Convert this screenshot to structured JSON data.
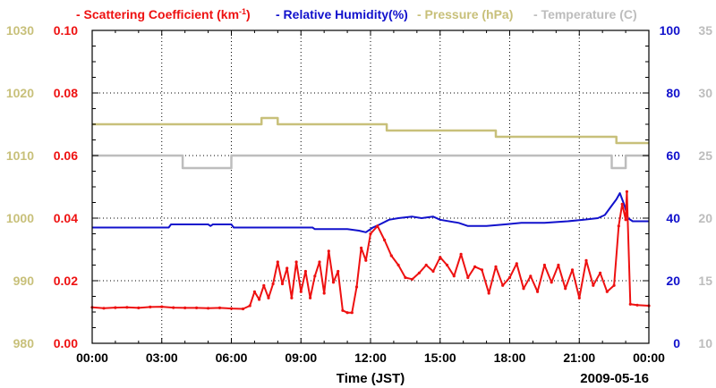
{
  "chart_data": {
    "type": "line",
    "title": "",
    "legend": {
      "position": "top",
      "entries": [
        {
          "label": "- Scattering Coefficient (km",
          "sup": "-1",
          "close": ")",
          "color": "#ee1111"
        },
        {
          "label": "- Relative Humidity(%)",
          "color": "#1111cc"
        },
        {
          "label": "- Pressure (hPa)",
          "color": "#c8c07a"
        },
        {
          "label": "- Temperature (C)",
          "color": "#bdbdbd"
        }
      ]
    },
    "xlabel": "Time (JST)",
    "date_label": "2009-05-16",
    "x_range_hours": [
      0,
      24
    ],
    "x_ticks": [
      {
        "hour": 0,
        "label": "00:00"
      },
      {
        "hour": 3,
        "label": "03:00"
      },
      {
        "hour": 6,
        "label": "06:00"
      },
      {
        "hour": 9,
        "label": "09:00"
      },
      {
        "hour": 12,
        "label": "12:00"
      },
      {
        "hour": 15,
        "label": "15:00"
      },
      {
        "hour": 18,
        "label": "18:00"
      },
      {
        "hour": 21,
        "label": "21:00"
      },
      {
        "hour": 24,
        "label": "00:00"
      }
    ],
    "axes": {
      "pressure": {
        "range": [
          980,
          1030
        ],
        "ticks": [
          "980",
          "990",
          "1000",
          "1010",
          "1020",
          "1030"
        ],
        "color": "#c8c07a"
      },
      "scattering": {
        "range": [
          0,
          0.1
        ],
        "ticks": [
          "0.00",
          "0.02",
          "0.04",
          "0.06",
          "0.08",
          "0.10"
        ],
        "color": "#ee1111"
      },
      "humidity": {
        "range": [
          0,
          100
        ],
        "ticks": [
          "0",
          "20",
          "40",
          "60",
          "80",
          "100"
        ],
        "color": "#1111cc"
      },
      "temperature": {
        "range": [
          10,
          35
        ],
        "ticks": [
          "10",
          "15",
          "20",
          "25",
          "30",
          "35"
        ],
        "color": "#bdbdbd"
      }
    },
    "grid": true,
    "series": [
      {
        "name": "Pressure (hPa)",
        "axis": "pressure",
        "color": "#c8c07a",
        "step": true,
        "points": [
          [
            0,
            1015
          ],
          [
            7.3,
            1015
          ],
          [
            7.3,
            1016
          ],
          [
            8.0,
            1016
          ],
          [
            8.0,
            1015
          ],
          [
            12.7,
            1015
          ],
          [
            12.7,
            1014
          ],
          [
            17.4,
            1014
          ],
          [
            17.4,
            1013
          ],
          [
            22.6,
            1013
          ],
          [
            22.6,
            1012
          ],
          [
            24,
            1012
          ]
        ]
      },
      {
        "name": "Temperature (C)",
        "axis": "temperature",
        "color": "#bdbdbd",
        "step": true,
        "points": [
          [
            0,
            25
          ],
          [
            3.9,
            25
          ],
          [
            3.9,
            24
          ],
          [
            6.0,
            24
          ],
          [
            6.0,
            25
          ],
          [
            22.4,
            25
          ],
          [
            22.4,
            24
          ],
          [
            23.0,
            24
          ],
          [
            23.0,
            25
          ],
          [
            24,
            25
          ]
        ]
      },
      {
        "name": "Relative Humidity(%)",
        "axis": "humidity",
        "color": "#1111cc",
        "step": false,
        "points": [
          [
            0,
            37
          ],
          [
            3.3,
            37
          ],
          [
            3.4,
            38
          ],
          [
            5.0,
            38
          ],
          [
            5.1,
            37.5
          ],
          [
            5.2,
            38
          ],
          [
            6.0,
            38
          ],
          [
            6.1,
            37
          ],
          [
            9.5,
            37
          ],
          [
            9.6,
            36.5
          ],
          [
            11.0,
            36.5
          ],
          [
            11.5,
            36
          ],
          [
            11.8,
            35.5
          ],
          [
            12.1,
            37
          ],
          [
            12.4,
            38
          ],
          [
            12.8,
            39.5
          ],
          [
            13.2,
            40
          ],
          [
            13.8,
            40.5
          ],
          [
            14.2,
            40
          ],
          [
            14.7,
            40.5
          ],
          [
            15.0,
            39.5
          ],
          [
            15.8,
            38.5
          ],
          [
            16.2,
            37.5
          ],
          [
            17.0,
            37.5
          ],
          [
            17.8,
            38
          ],
          [
            18.5,
            38.5
          ],
          [
            19.5,
            38.5
          ],
          [
            20.5,
            39
          ],
          [
            21.2,
            39.5
          ],
          [
            21.8,
            40
          ],
          [
            22.1,
            41
          ],
          [
            22.4,
            44
          ],
          [
            22.6,
            46
          ],
          [
            22.75,
            48
          ],
          [
            22.85,
            46
          ],
          [
            22.95,
            44
          ],
          [
            23.1,
            40
          ],
          [
            23.3,
            39
          ],
          [
            24,
            39
          ]
        ]
      },
      {
        "name": "Scattering Coefficient (km-1)",
        "axis": "scattering",
        "color": "#ee1111",
        "step": false,
        "points": [
          [
            0,
            0.0115
          ],
          [
            0.5,
            0.0112
          ],
          [
            1.0,
            0.0114
          ],
          [
            1.5,
            0.0115
          ],
          [
            2.0,
            0.0113
          ],
          [
            2.5,
            0.0116
          ],
          [
            3.0,
            0.0117
          ],
          [
            3.5,
            0.0114
          ],
          [
            4.0,
            0.0113
          ],
          [
            4.5,
            0.0113
          ],
          [
            5.0,
            0.0112
          ],
          [
            5.5,
            0.0113
          ],
          [
            6.0,
            0.0111
          ],
          [
            6.5,
            0.011
          ],
          [
            6.8,
            0.012
          ],
          [
            7.0,
            0.0165
          ],
          [
            7.2,
            0.014
          ],
          [
            7.4,
            0.0185
          ],
          [
            7.6,
            0.0145
          ],
          [
            7.8,
            0.019
          ],
          [
            8.0,
            0.026
          ],
          [
            8.2,
            0.019
          ],
          [
            8.4,
            0.024
          ],
          [
            8.6,
            0.0145
          ],
          [
            8.8,
            0.026
          ],
          [
            9.0,
            0.0165
          ],
          [
            9.2,
            0.023
          ],
          [
            9.4,
            0.0145
          ],
          [
            9.6,
            0.0215
          ],
          [
            9.8,
            0.026
          ],
          [
            10.0,
            0.016
          ],
          [
            10.2,
            0.0295
          ],
          [
            10.4,
            0.0195
          ],
          [
            10.6,
            0.023
          ],
          [
            10.8,
            0.0105
          ],
          [
            11.0,
            0.0098
          ],
          [
            11.2,
            0.0098
          ],
          [
            11.4,
            0.018
          ],
          [
            11.6,
            0.0305
          ],
          [
            11.8,
            0.0265
          ],
          [
            12.0,
            0.035
          ],
          [
            12.3,
            0.0375
          ],
          [
            12.6,
            0.033
          ],
          [
            12.9,
            0.028
          ],
          [
            13.2,
            0.025
          ],
          [
            13.5,
            0.021
          ],
          [
            13.8,
            0.0205
          ],
          [
            14.1,
            0.0225
          ],
          [
            14.4,
            0.025
          ],
          [
            14.7,
            0.023
          ],
          [
            15.0,
            0.0275
          ],
          [
            15.3,
            0.025
          ],
          [
            15.6,
            0.0215
          ],
          [
            15.9,
            0.0285
          ],
          [
            16.2,
            0.021
          ],
          [
            16.5,
            0.0245
          ],
          [
            16.8,
            0.0235
          ],
          [
            17.1,
            0.016
          ],
          [
            17.4,
            0.0245
          ],
          [
            17.7,
            0.0185
          ],
          [
            18.0,
            0.021
          ],
          [
            18.3,
            0.0255
          ],
          [
            18.6,
            0.0175
          ],
          [
            18.9,
            0.0215
          ],
          [
            19.2,
            0.0165
          ],
          [
            19.5,
            0.025
          ],
          [
            19.8,
            0.0195
          ],
          [
            20.1,
            0.025
          ],
          [
            20.4,
            0.0175
          ],
          [
            20.7,
            0.0235
          ],
          [
            21.0,
            0.0145
          ],
          [
            21.3,
            0.0265
          ],
          [
            21.6,
            0.0185
          ],
          [
            21.9,
            0.0225
          ],
          [
            22.2,
            0.0165
          ],
          [
            22.5,
            0.0185
          ],
          [
            22.7,
            0.0375
          ],
          [
            22.85,
            0.0445
          ],
          [
            23.0,
            0.0395
          ],
          [
            23.05,
            0.0485
          ],
          [
            23.2,
            0.0125
          ],
          [
            23.5,
            0.0122
          ],
          [
            24,
            0.012
          ]
        ]
      }
    ]
  }
}
